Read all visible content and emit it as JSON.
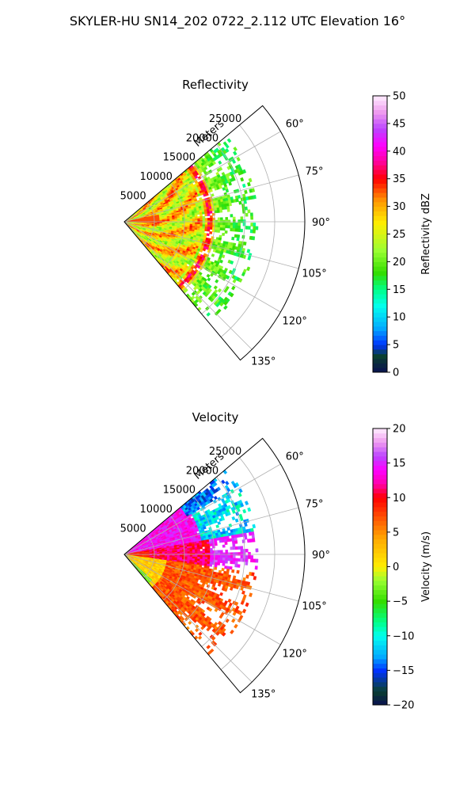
{
  "figure": {
    "suptitle": "SKYLER-HU  SN14_202  0722_2.112 UTC Elevation 16°"
  },
  "chart_data": [
    {
      "type": "heatmap",
      "projection": "polar-sector",
      "title": "Reflectivity",
      "radial_label": "Meters",
      "range_ticks": [
        5000,
        10000,
        15000,
        20000,
        25000
      ],
      "range_tick_labels": [
        "5000",
        "10000",
        "15000",
        "20000",
        "25000"
      ],
      "r_max": 30000,
      "azimuth_ticks": [
        60,
        75,
        90,
        105,
        120,
        135
      ],
      "azimuth_tick_labels": [
        "60°",
        "75°",
        "90°",
        "105°",
        "120°",
        "135°"
      ],
      "sector_degrees": [
        50,
        140
      ],
      "data_extent": {
        "azimuth": [
          50,
          140
        ],
        "range": [
          0,
          22000
        ]
      },
      "colorbar": {
        "label": "Reflectivity dBZ",
        "min": 0,
        "max": 50,
        "ticks": [
          0,
          5,
          10,
          15,
          20,
          25,
          30,
          35,
          40,
          45,
          50
        ],
        "tick_labels": [
          "0",
          "5",
          "10",
          "15",
          "20",
          "25",
          "30",
          "35",
          "40",
          "45",
          "50"
        ],
        "stops": [
          {
            "v": 0,
            "color": "#0a1050"
          },
          {
            "v": 3,
            "color": "#0a4030"
          },
          {
            "v": 5,
            "color": "#0033ff"
          },
          {
            "v": 8,
            "color": "#00aaff"
          },
          {
            "v": 12,
            "color": "#00ffee"
          },
          {
            "v": 15,
            "color": "#00ff88"
          },
          {
            "v": 18,
            "color": "#33dd00"
          },
          {
            "v": 22,
            "color": "#99ff33"
          },
          {
            "v": 27,
            "color": "#ffee00"
          },
          {
            "v": 31,
            "color": "#ff9900"
          },
          {
            "v": 35,
            "color": "#ff0000"
          },
          {
            "v": 38,
            "color": "#ff0099"
          },
          {
            "v": 41,
            "color": "#ff00ff"
          },
          {
            "v": 44,
            "color": "#bb44ff"
          },
          {
            "v": 47,
            "color": "#ee99ee"
          },
          {
            "v": 50,
            "color": "#ffeeff"
          }
        ]
      }
    },
    {
      "type": "heatmap",
      "projection": "polar-sector",
      "title": "Velocity",
      "radial_label": "Meters",
      "range_ticks": [
        5000,
        10000,
        15000,
        20000,
        25000
      ],
      "range_tick_labels": [
        "5000",
        "10000",
        "15000",
        "20000",
        "25000"
      ],
      "r_max": 30000,
      "azimuth_ticks": [
        60,
        75,
        90,
        105,
        120,
        135
      ],
      "azimuth_tick_labels": [
        "60°",
        "75°",
        "90°",
        "105°",
        "120°",
        "135°"
      ],
      "sector_degrees": [
        50,
        140
      ],
      "data_extent": {
        "azimuth": [
          50,
          140
        ],
        "range": [
          0,
          22000
        ]
      },
      "colorbar": {
        "label": "Velocity (m/s)",
        "min": -20,
        "max": 20,
        "ticks": [
          -20,
          -15,
          -10,
          -5,
          0,
          5,
          10,
          15,
          20
        ],
        "tick_labels": [
          "−20",
          "−15",
          "−10",
          "−5",
          "0",
          "5",
          "10",
          "15",
          "20"
        ],
        "stops": [
          {
            "v": -20,
            "color": "#0a1050"
          },
          {
            "v": -18,
            "color": "#0a4030"
          },
          {
            "v": -15,
            "color": "#0033ff"
          },
          {
            "v": -13,
            "color": "#00aaff"
          },
          {
            "v": -10,
            "color": "#00ffee"
          },
          {
            "v": -8,
            "color": "#00ff88"
          },
          {
            "v": -5,
            "color": "#33dd00"
          },
          {
            "v": -2,
            "color": "#99ff33"
          },
          {
            "v": 0,
            "color": "#ffee00"
          },
          {
            "v": 4,
            "color": "#ffaa00"
          },
          {
            "v": 7,
            "color": "#ff5500"
          },
          {
            "v": 10,
            "color": "#ff0000"
          },
          {
            "v": 12,
            "color": "#ff00aa"
          },
          {
            "v": 14,
            "color": "#ff00ff"
          },
          {
            "v": 16,
            "color": "#bb44ff"
          },
          {
            "v": 18,
            "color": "#ee99ee"
          },
          {
            "v": 20,
            "color": "#ffeeff"
          }
        ]
      }
    }
  ]
}
